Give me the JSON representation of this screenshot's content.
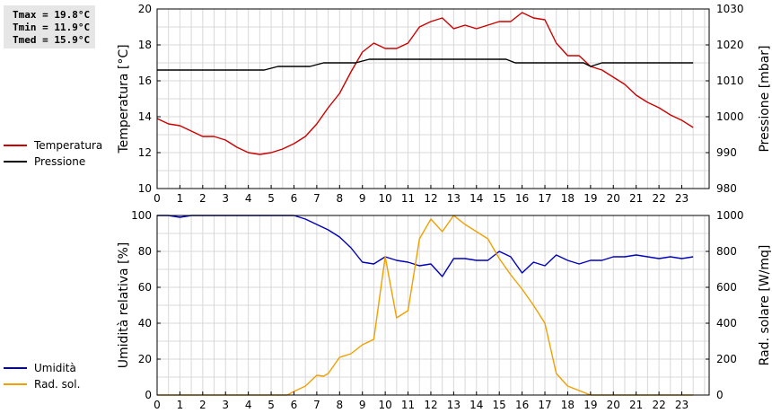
{
  "stats": {
    "tmax": "Tmax = 19.8°C",
    "tmin": "Tmin = 11.9°C",
    "tmed": "Tmed = 15.9°C"
  },
  "legend_top": [
    {
      "name": "Temperatura",
      "color": "#cc0000"
    },
    {
      "name": "Pressione",
      "color": "#000000"
    }
  ],
  "legend_bottom": [
    {
      "name": "Umidità",
      "color": "#0000bb"
    },
    {
      "name": "Rad. sol.",
      "color": "#f0a000"
    }
  ],
  "chart_data": [
    {
      "type": "line",
      "grid": true,
      "x_ticks": [
        "0",
        "1",
        "2",
        "3",
        "4",
        "5",
        "6",
        "7",
        "8",
        "9",
        "10",
        "11",
        "12",
        "13",
        "14",
        "15",
        "16",
        "17",
        "18",
        "19",
        "20",
        "21",
        "22",
        "23"
      ],
      "xlim": [
        0,
        24.2
      ],
      "ylabel": "Temperatura [°C]",
      "ylim": [
        10,
        20
      ],
      "y_ticks": [
        10,
        12,
        14,
        16,
        18,
        20
      ],
      "y2label": "Pressione [mbar]",
      "y2lim": [
        980,
        1030
      ],
      "y2_ticks": [
        980,
        990,
        1000,
        1010,
        1020,
        1030
      ],
      "series": [
        {
          "name": "Temperatura",
          "axis": "left",
          "color": "#cc0000",
          "x": [
            0,
            0.5,
            1,
            1.5,
            2,
            2.5,
            3,
            3.5,
            4,
            4.5,
            5,
            5.5,
            6,
            6.5,
            7,
            7.5,
            8,
            8.5,
            9,
            9.5,
            10,
            10.5,
            11,
            11.5,
            12,
            12.5,
            13,
            13.5,
            14,
            14.5,
            15,
            15.5,
            16,
            16.5,
            17,
            17.5,
            18,
            18.5,
            19,
            19.5,
            20,
            20.5,
            21,
            21.5,
            22,
            22.5,
            23,
            23.5
          ],
          "values": [
            13.9,
            13.6,
            13.5,
            13.2,
            12.9,
            12.9,
            12.7,
            12.3,
            12.0,
            11.9,
            12.0,
            12.2,
            12.5,
            12.9,
            13.6,
            14.5,
            15.3,
            16.5,
            17.6,
            18.1,
            17.8,
            17.8,
            18.1,
            19.0,
            19.3,
            19.5,
            18.9,
            19.1,
            18.9,
            19.1,
            19.3,
            19.3,
            19.8,
            19.5,
            19.4,
            18.1,
            17.4,
            17.4,
            16.8,
            16.6,
            16.2,
            15.8,
            15.2,
            14.8,
            14.5,
            14.1,
            13.8,
            13.4
          ]
        },
        {
          "name": "Pressione",
          "axis": "right",
          "color": "#000000",
          "x": [
            0,
            4.7,
            5.3,
            6.7,
            7.3,
            8.7,
            9.3,
            15.3,
            15.7,
            18.7,
            19.0,
            19.5,
            23.5
          ],
          "values": [
            1013,
            1013,
            1014,
            1014,
            1015,
            1015,
            1016,
            1016,
            1015,
            1015,
            1014,
            1015,
            1015
          ]
        }
      ]
    },
    {
      "type": "line",
      "grid": true,
      "x_ticks": [
        "0",
        "1",
        "2",
        "3",
        "4",
        "5",
        "6",
        "7",
        "8",
        "9",
        "10",
        "11",
        "12",
        "13",
        "14",
        "15",
        "16",
        "17",
        "18",
        "19",
        "20",
        "21",
        "22",
        "23"
      ],
      "xlim": [
        0,
        24.2
      ],
      "ylabel": "Umidità relativa [%]",
      "ylim": [
        0,
        100
      ],
      "y_ticks": [
        0,
        20,
        40,
        60,
        80,
        100
      ],
      "y2label": "Rad. solare [W/mq]",
      "y2lim": [
        0,
        1000
      ],
      "y2_ticks": [
        0,
        200,
        400,
        600,
        800,
        1000
      ],
      "series": [
        {
          "name": "Umidità",
          "axis": "left",
          "color": "#0000bb",
          "x": [
            0,
            0.5,
            1,
            1.5,
            2,
            2.5,
            3,
            3.5,
            4,
            4.5,
            5,
            5.5,
            6,
            6.5,
            7,
            7.5,
            8,
            8.5,
            9,
            9.5,
            10,
            10.5,
            11,
            11.5,
            12,
            12.5,
            13,
            13.5,
            14,
            14.5,
            15,
            15.5,
            16,
            16.5,
            17,
            17.5,
            18,
            18.5,
            19,
            19.5,
            20,
            20.5,
            21,
            21.5,
            22,
            22.5,
            23,
            23.5
          ],
          "values": [
            100,
            100,
            99,
            100,
            100,
            100,
            100,
            100,
            100,
            100,
            100,
            100,
            100,
            98,
            95,
            92,
            88,
            82,
            74,
            73,
            77,
            75,
            74,
            72,
            73,
            66,
            76,
            76,
            75,
            75,
            80,
            77,
            68,
            74,
            72,
            78,
            75,
            73,
            75,
            75,
            77,
            77,
            78,
            77,
            76,
            77,
            76,
            77
          ]
        },
        {
          "name": "Rad. sol.",
          "axis": "right",
          "color": "#f0a000",
          "x": [
            0,
            5.7,
            6,
            6.5,
            7,
            7.3,
            7.5,
            8,
            8.5,
            9,
            9.5,
            10,
            10.5,
            11,
            11.5,
            12,
            12.5,
            13,
            13.5,
            14,
            14.5,
            15,
            15.5,
            16,
            16.5,
            17,
            17.5,
            18,
            18.5,
            19,
            23.5
          ],
          "values": [
            0,
            0,
            20,
            50,
            110,
            105,
            120,
            210,
            230,
            280,
            310,
            770,
            430,
            470,
            870,
            980,
            910,
            1000,
            950,
            910,
            870,
            760,
            670,
            590,
            500,
            400,
            120,
            50,
            25,
            0,
            0
          ]
        }
      ]
    }
  ]
}
